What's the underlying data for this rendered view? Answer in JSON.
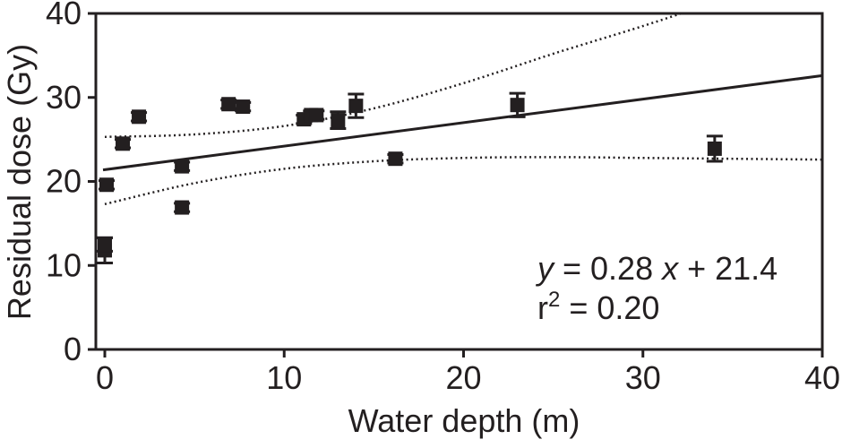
{
  "chart_data": {
    "type": "scatter",
    "xlabel": "Water depth (m)",
    "ylabel": "Residual dose (Gy)",
    "xlim": [
      -0.5,
      40
    ],
    "ylim": [
      0,
      40
    ],
    "x_ticks": [
      0,
      10,
      20,
      30,
      40
    ],
    "y_ticks": [
      0,
      10,
      20,
      30,
      40
    ],
    "x_tick_labels": [
      "0",
      "10",
      "20",
      "30",
      "40"
    ],
    "y_tick_labels": [
      "0",
      "10",
      "20",
      "30",
      "40"
    ],
    "grid": false,
    "marker_color": "#231f20",
    "points": [
      {
        "x": 0.0,
        "y": 11.8,
        "err": 1.5
      },
      {
        "x": 0.0,
        "y": 12.5,
        "err": 0.8
      },
      {
        "x": 0.1,
        "y": 19.6,
        "err": 0.5
      },
      {
        "x": 1.0,
        "y": 24.5,
        "err": 0.5
      },
      {
        "x": 1.9,
        "y": 27.7,
        "err": 0.5
      },
      {
        "x": 4.3,
        "y": 21.8,
        "err": 0.5
      },
      {
        "x": 4.3,
        "y": 16.9,
        "err": 0.5
      },
      {
        "x": 6.9,
        "y": 29.2,
        "err": 0.5
      },
      {
        "x": 7.7,
        "y": 28.9,
        "err": 0.5
      },
      {
        "x": 11.1,
        "y": 27.4,
        "err": 0.5
      },
      {
        "x": 11.5,
        "y": 27.9,
        "err": 0.5
      },
      {
        "x": 11.8,
        "y": 27.9,
        "err": 0.5
      },
      {
        "x": 13.0,
        "y": 27.3,
        "err": 1.0
      },
      {
        "x": 14.0,
        "y": 29.0,
        "err": 1.4
      },
      {
        "x": 16.2,
        "y": 22.7,
        "err": 0.5
      },
      {
        "x": 23.0,
        "y": 29.1,
        "err": 1.4
      },
      {
        "x": 34.0,
        "y": 23.9,
        "err": 1.5
      }
    ],
    "fit": {
      "slope": 0.28,
      "intercept": 21.4,
      "x_range": [
        0,
        40
      ]
    },
    "confidence_band": {
      "upper": [
        [
          0,
          25.3
        ],
        [
          5,
          25.6
        ],
        [
          10,
          26.6
        ],
        [
          15,
          28.7
        ],
        [
          20,
          31.7
        ],
        [
          25,
          35.2
        ],
        [
          30,
          38.5
        ],
        [
          33.5,
          41.0
        ]
      ],
      "lower": [
        [
          0,
          17.3
        ],
        [
          5,
          19.8
        ],
        [
          10,
          21.5
        ],
        [
          15,
          22.4
        ],
        [
          20,
          22.8
        ],
        [
          25,
          22.9
        ],
        [
          30,
          22.8
        ],
        [
          35,
          22.7
        ],
        [
          40,
          22.6
        ]
      ]
    },
    "annotations": {
      "equation_y": "y",
      "equation_rest": " = 0.28 ",
      "equation_x": "x",
      "equation_tail": " + 21.4",
      "r2_r": "r",
      "r2_sup": "2",
      "r2_rest": " = 0.20"
    }
  }
}
